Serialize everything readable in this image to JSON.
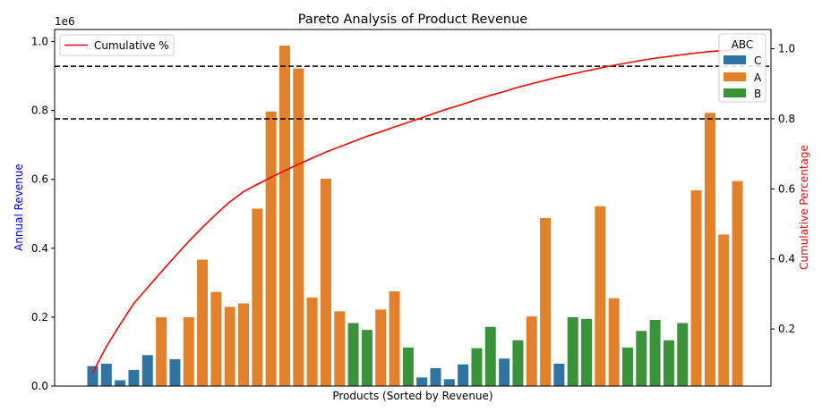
{
  "chart_data": {
    "type": "bar",
    "title": "Pareto Analysis of Product Revenue",
    "xlabel": "Products (Sorted by Revenue)",
    "ylabel": "Annual Revenue",
    "y2label": "Cumulative Percentage",
    "y_offset_label": "1e6",
    "ylim": [
      0,
      1.035
    ],
    "y2lim": [
      0.037,
      1.055
    ],
    "yticks": [
      0.0,
      0.2,
      0.4,
      0.6,
      0.8,
      1.0
    ],
    "ytick_labels": [
      "0.0",
      "0.2",
      "0.4",
      "0.6",
      "0.8",
      "1.0"
    ],
    "y2ticks": [
      0.2,
      0.4,
      0.6,
      0.8,
      1.0
    ],
    "y2tick_labels": [
      "0.2",
      "0.4",
      "0.6",
      "0.8",
      "1.0"
    ],
    "grid": false,
    "legend_line": {
      "label": "Cumulative %",
      "position": "top-left"
    },
    "legend_classes": {
      "title": "ABC",
      "position": "top-right",
      "entries": [
        "C",
        "A",
        "B"
      ]
    },
    "class_colors": {
      "A": "#e1812c",
      "B": "#3a923a",
      "C": "#3274a1"
    },
    "line_color": "#ff0000",
    "thresholds": [
      0.8,
      0.95
    ],
    "bars": [
      {
        "class": "C",
        "value": 0.058
      },
      {
        "class": "C",
        "value": 0.065
      },
      {
        "class": "C",
        "value": 0.017
      },
      {
        "class": "C",
        "value": 0.047
      },
      {
        "class": "C",
        "value": 0.09
      },
      {
        "class": "A",
        "value": 0.2
      },
      {
        "class": "C",
        "value": 0.078
      },
      {
        "class": "A",
        "value": 0.2
      },
      {
        "class": "A",
        "value": 0.367
      },
      {
        "class": "A",
        "value": 0.273
      },
      {
        "class": "A",
        "value": 0.23
      },
      {
        "class": "A",
        "value": 0.24
      },
      {
        "class": "A",
        "value": 0.515
      },
      {
        "class": "A",
        "value": 0.797
      },
      {
        "class": "A",
        "value": 0.988
      },
      {
        "class": "A",
        "value": 0.922
      },
      {
        "class": "A",
        "value": 0.257
      },
      {
        "class": "A",
        "value": 0.602
      },
      {
        "class": "A",
        "value": 0.217
      },
      {
        "class": "B",
        "value": 0.183
      },
      {
        "class": "B",
        "value": 0.163
      },
      {
        "class": "A",
        "value": 0.222
      },
      {
        "class": "A",
        "value": 0.275
      },
      {
        "class": "B",
        "value": 0.112
      },
      {
        "class": "C",
        "value": 0.025
      },
      {
        "class": "C",
        "value": 0.052
      },
      {
        "class": "C",
        "value": 0.02
      },
      {
        "class": "C",
        "value": 0.063
      },
      {
        "class": "B",
        "value": 0.11
      },
      {
        "class": "B",
        "value": 0.172
      },
      {
        "class": "C",
        "value": 0.08
      },
      {
        "class": "B",
        "value": 0.133
      },
      {
        "class": "A",
        "value": 0.202
      },
      {
        "class": "A",
        "value": 0.488
      },
      {
        "class": "C",
        "value": 0.065
      },
      {
        "class": "B",
        "value": 0.2
      },
      {
        "class": "B",
        "value": 0.195
      },
      {
        "class": "A",
        "value": 0.522
      },
      {
        "class": "A",
        "value": 0.255
      },
      {
        "class": "B",
        "value": 0.112
      },
      {
        "class": "B",
        "value": 0.16
      },
      {
        "class": "B",
        "value": 0.192
      },
      {
        "class": "B",
        "value": 0.133
      },
      {
        "class": "B",
        "value": 0.183
      },
      {
        "class": "A",
        "value": 0.568
      },
      {
        "class": "A",
        "value": 0.793
      },
      {
        "class": "A",
        "value": 0.44
      },
      {
        "class": "A",
        "value": 0.595
      }
    ],
    "cumulative": [
      0.075,
      0.15,
      0.213,
      0.273,
      0.318,
      0.363,
      0.407,
      0.45,
      0.49,
      0.528,
      0.563,
      0.592,
      0.613,
      0.633,
      0.652,
      0.67,
      0.688,
      0.705,
      0.72,
      0.735,
      0.75,
      0.763,
      0.777,
      0.79,
      0.803,
      0.817,
      0.83,
      0.842,
      0.855,
      0.867,
      0.878,
      0.89,
      0.9,
      0.91,
      0.92,
      0.928,
      0.937,
      0.945,
      0.953,
      0.96,
      0.967,
      0.973,
      0.978,
      0.983,
      0.988,
      0.992,
      0.995,
      0.998
    ]
  }
}
